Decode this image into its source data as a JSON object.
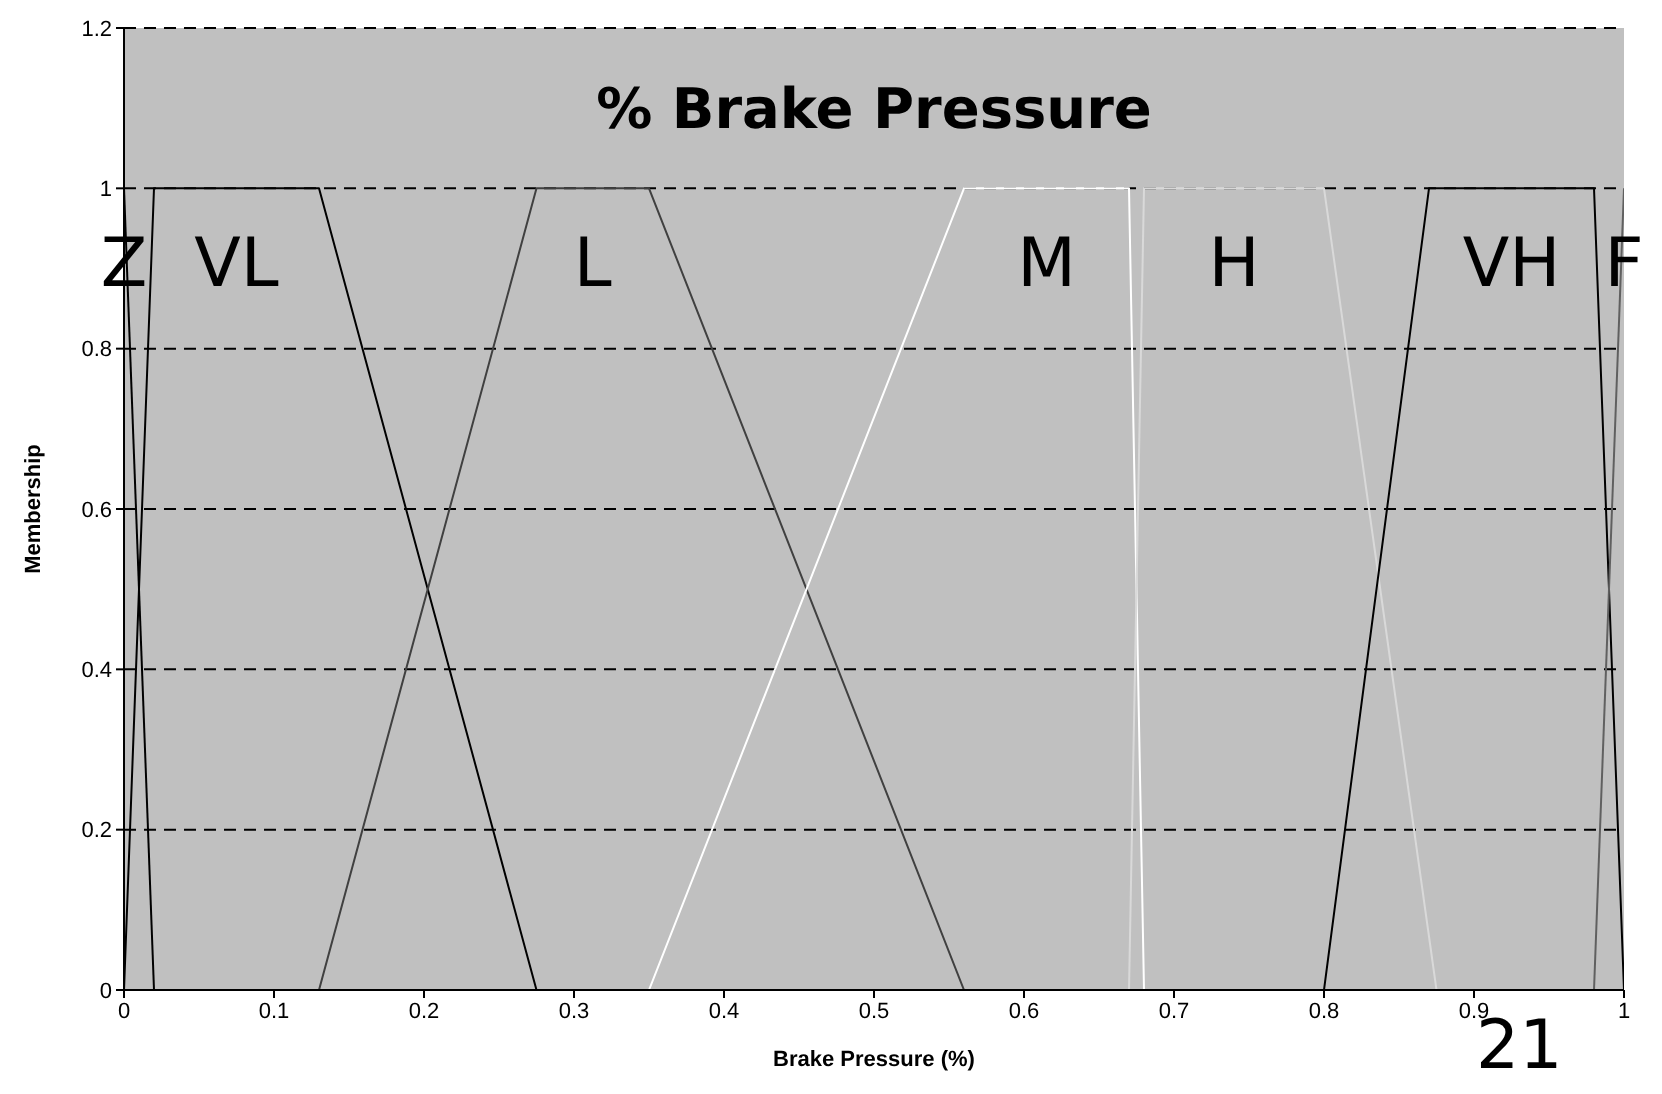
{
  "chart_data": {
    "type": "line",
    "xlabel": "Brake Pressure (%)",
    "ylabel": "Membership",
    "annotations": [
      "% Brake Pressure",
      "21"
    ],
    "series": [
      {
        "name": "Z",
        "color": "#000000",
        "x": [
          0,
          0.02
        ],
        "values": [
          1,
          0
        ]
      },
      {
        "name": "VL",
        "color": "#000000",
        "x": [
          0,
          0.02,
          0.13,
          0.275
        ],
        "values": [
          0,
          1,
          1,
          0
        ]
      },
      {
        "name": "L",
        "color": "#404040",
        "x": [
          0.13,
          0.275,
          0.35,
          0.56
        ],
        "values": [
          0,
          1,
          1,
          0
        ]
      },
      {
        "name": "M",
        "color": "#ffffff",
        "x": [
          0.35,
          0.56,
          0.67,
          0.68
        ],
        "values": [
          0,
          1,
          1,
          0
        ]
      },
      {
        "name": "H",
        "color": "#d9d9d9",
        "x": [
          0.67,
          0.68,
          0.8,
          0.875
        ],
        "values": [
          0,
          1,
          1,
          0
        ]
      },
      {
        "name": "VH",
        "color": "#000000",
        "x": [
          0.8,
          0.87,
          0.98,
          1
        ],
        "values": [
          0,
          1,
          1,
          0
        ]
      },
      {
        "name": "F",
        "color": "#606060",
        "x": [
          0.98,
          1
        ],
        "values": [
          0,
          1
        ]
      }
    ],
    "xlim": [
      0,
      1
    ],
    "xticks": [
      0,
      0.1,
      0.2,
      0.3,
      0.4,
      0.5,
      0.6,
      0.7,
      0.8,
      0.9,
      1
    ],
    "ylim": [
      0,
      1.2
    ],
    "yticks": [
      0,
      0.2,
      0.4,
      0.6,
      0.8,
      1,
      1.2
    ],
    "grid": "y",
    "legend": false,
    "marker": "none",
    "line_style": "solid"
  }
}
